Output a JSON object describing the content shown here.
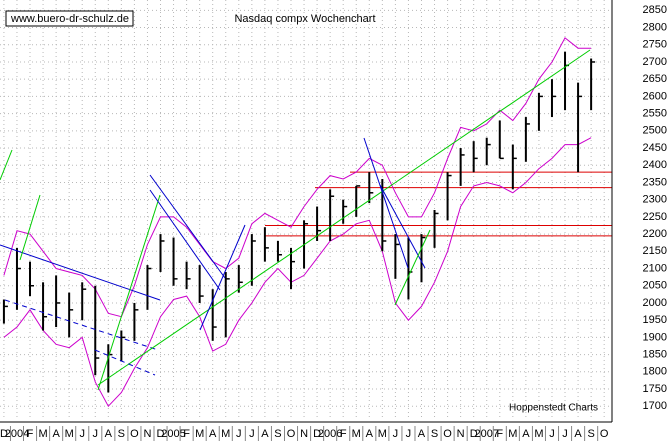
{
  "chart_data": {
    "type": "ohlc",
    "title": "Nasdaq compx Wochenchart",
    "watermark": "www.buero-dr-schulz.de",
    "source": "Hoppenstedt Charts",
    "x_labels": [
      "D",
      "2004",
      "F",
      "M",
      "A",
      "M",
      "J",
      "J",
      "A",
      "S",
      "O",
      "N",
      "D",
      "2005",
      "F",
      "M",
      "A",
      "M",
      "J",
      "J",
      "A",
      "S",
      "O",
      "N",
      "D",
      "2006",
      "F",
      "M",
      "A",
      "M",
      "J",
      "J",
      "A",
      "S",
      "O",
      "N",
      "D",
      "2007",
      "F",
      "M",
      "A",
      "M",
      "J",
      "J",
      "A",
      "S",
      "O"
    ],
    "x": [
      0,
      1,
      2,
      3,
      4,
      5,
      6,
      7,
      8,
      9,
      10,
      11,
      12,
      13,
      14,
      15,
      16,
      17,
      18,
      19,
      20,
      21,
      22,
      23,
      24,
      25,
      26,
      27,
      28,
      29,
      30,
      31,
      32,
      33,
      34,
      35,
      36,
      37,
      38,
      39,
      40,
      41,
      42,
      43,
      44,
      45
    ],
    "high": [
      2010,
      2160,
      2120,
      2060,
      2080,
      2030,
      2060,
      2050,
      1880,
      1920,
      2000,
      2110,
      2200,
      2190,
      2120,
      2110,
      2040,
      2090,
      2110,
      2200,
      2220,
      2180,
      2160,
      2240,
      2280,
      2330,
      2300,
      2340,
      2380,
      2360,
      2200,
      2190,
      2200,
      2270,
      2380,
      2450,
      2470,
      2480,
      2530,
      2460,
      2540,
      2610,
      2650,
      2730,
      2640,
      2710
    ],
    "low": [
      1940,
      1980,
      2020,
      1920,
      1930,
      1900,
      1950,
      1790,
      1740,
      1830,
      1890,
      1980,
      2090,
      2050,
      2040,
      2000,
      1890,
      1900,
      2030,
      2050,
      2120,
      2120,
      2040,
      2100,
      2180,
      2180,
      2230,
      2250,
      2290,
      2150,
      2070,
      2010,
      2060,
      2160,
      2240,
      2340,
      2380,
      2400,
      2420,
      2330,
      2410,
      2500,
      2540,
      2560,
      2380,
      2560
    ],
    "close": [
      1990,
      2100,
      2050,
      1960,
      2000,
      1980,
      2040,
      1840,
      1850,
      1900,
      1980,
      2100,
      2180,
      2070,
      2070,
      2020,
      1930,
      2070,
      2060,
      2180,
      2160,
      2140,
      2120,
      2230,
      2210,
      2310,
      2280,
      2340,
      2320,
      2180,
      2170,
      2090,
      2190,
      2260,
      2370,
      2430,
      2420,
      2460,
      2420,
      2420,
      2520,
      2600,
      2600,
      2690,
      2600,
      2700
    ],
    "upper_band": [
      2080,
      2210,
      2200,
      2150,
      2100,
      2090,
      2080,
      2040,
      1970,
      1960,
      2050,
      2170,
      2250,
      2250,
      2220,
      2170,
      2120,
      2100,
      2130,
      2230,
      2260,
      2240,
      2220,
      2280,
      2330,
      2370,
      2360,
      2380,
      2420,
      2400,
      2320,
      2250,
      2250,
      2320,
      2420,
      2510,
      2500,
      2520,
      2560,
      2530,
      2580,
      2650,
      2700,
      2770,
      2740,
      2740
    ],
    "lower_band": [
      1900,
      1930,
      1980,
      1920,
      1880,
      1870,
      1900,
      1770,
      1700,
      1740,
      1810,
      1870,
      1960,
      2010,
      2020,
      1960,
      1860,
      1880,
      1950,
      2000,
      2060,
      2100,
      2060,
      2080,
      2130,
      2180,
      2200,
      2230,
      2240,
      2150,
      2000,
      1950,
      1990,
      2060,
      2150,
      2280,
      2340,
      2350,
      2340,
      2320,
      2350,
      2390,
      2420,
      2460,
      2460,
      2480
    ],
    "levels": [
      2380,
      2335,
      2225,
      2195
    ],
    "bar_color": "#000000",
    "band_color": "#cc00cc",
    "level_color": "#dd0000",
    "xlim": [
      -0.3,
      46.6
    ],
    "ylim": [
      1660,
      2880
    ],
    "yticks": [
      1700,
      1750,
      1800,
      1850,
      1900,
      1950,
      2000,
      2050,
      2100,
      2150,
      2200,
      2250,
      2300,
      2350,
      2400,
      2450,
      2500,
      2550,
      2600,
      2650,
      2700,
      2750,
      2800,
      2850
    ],
    "grid": true
  }
}
